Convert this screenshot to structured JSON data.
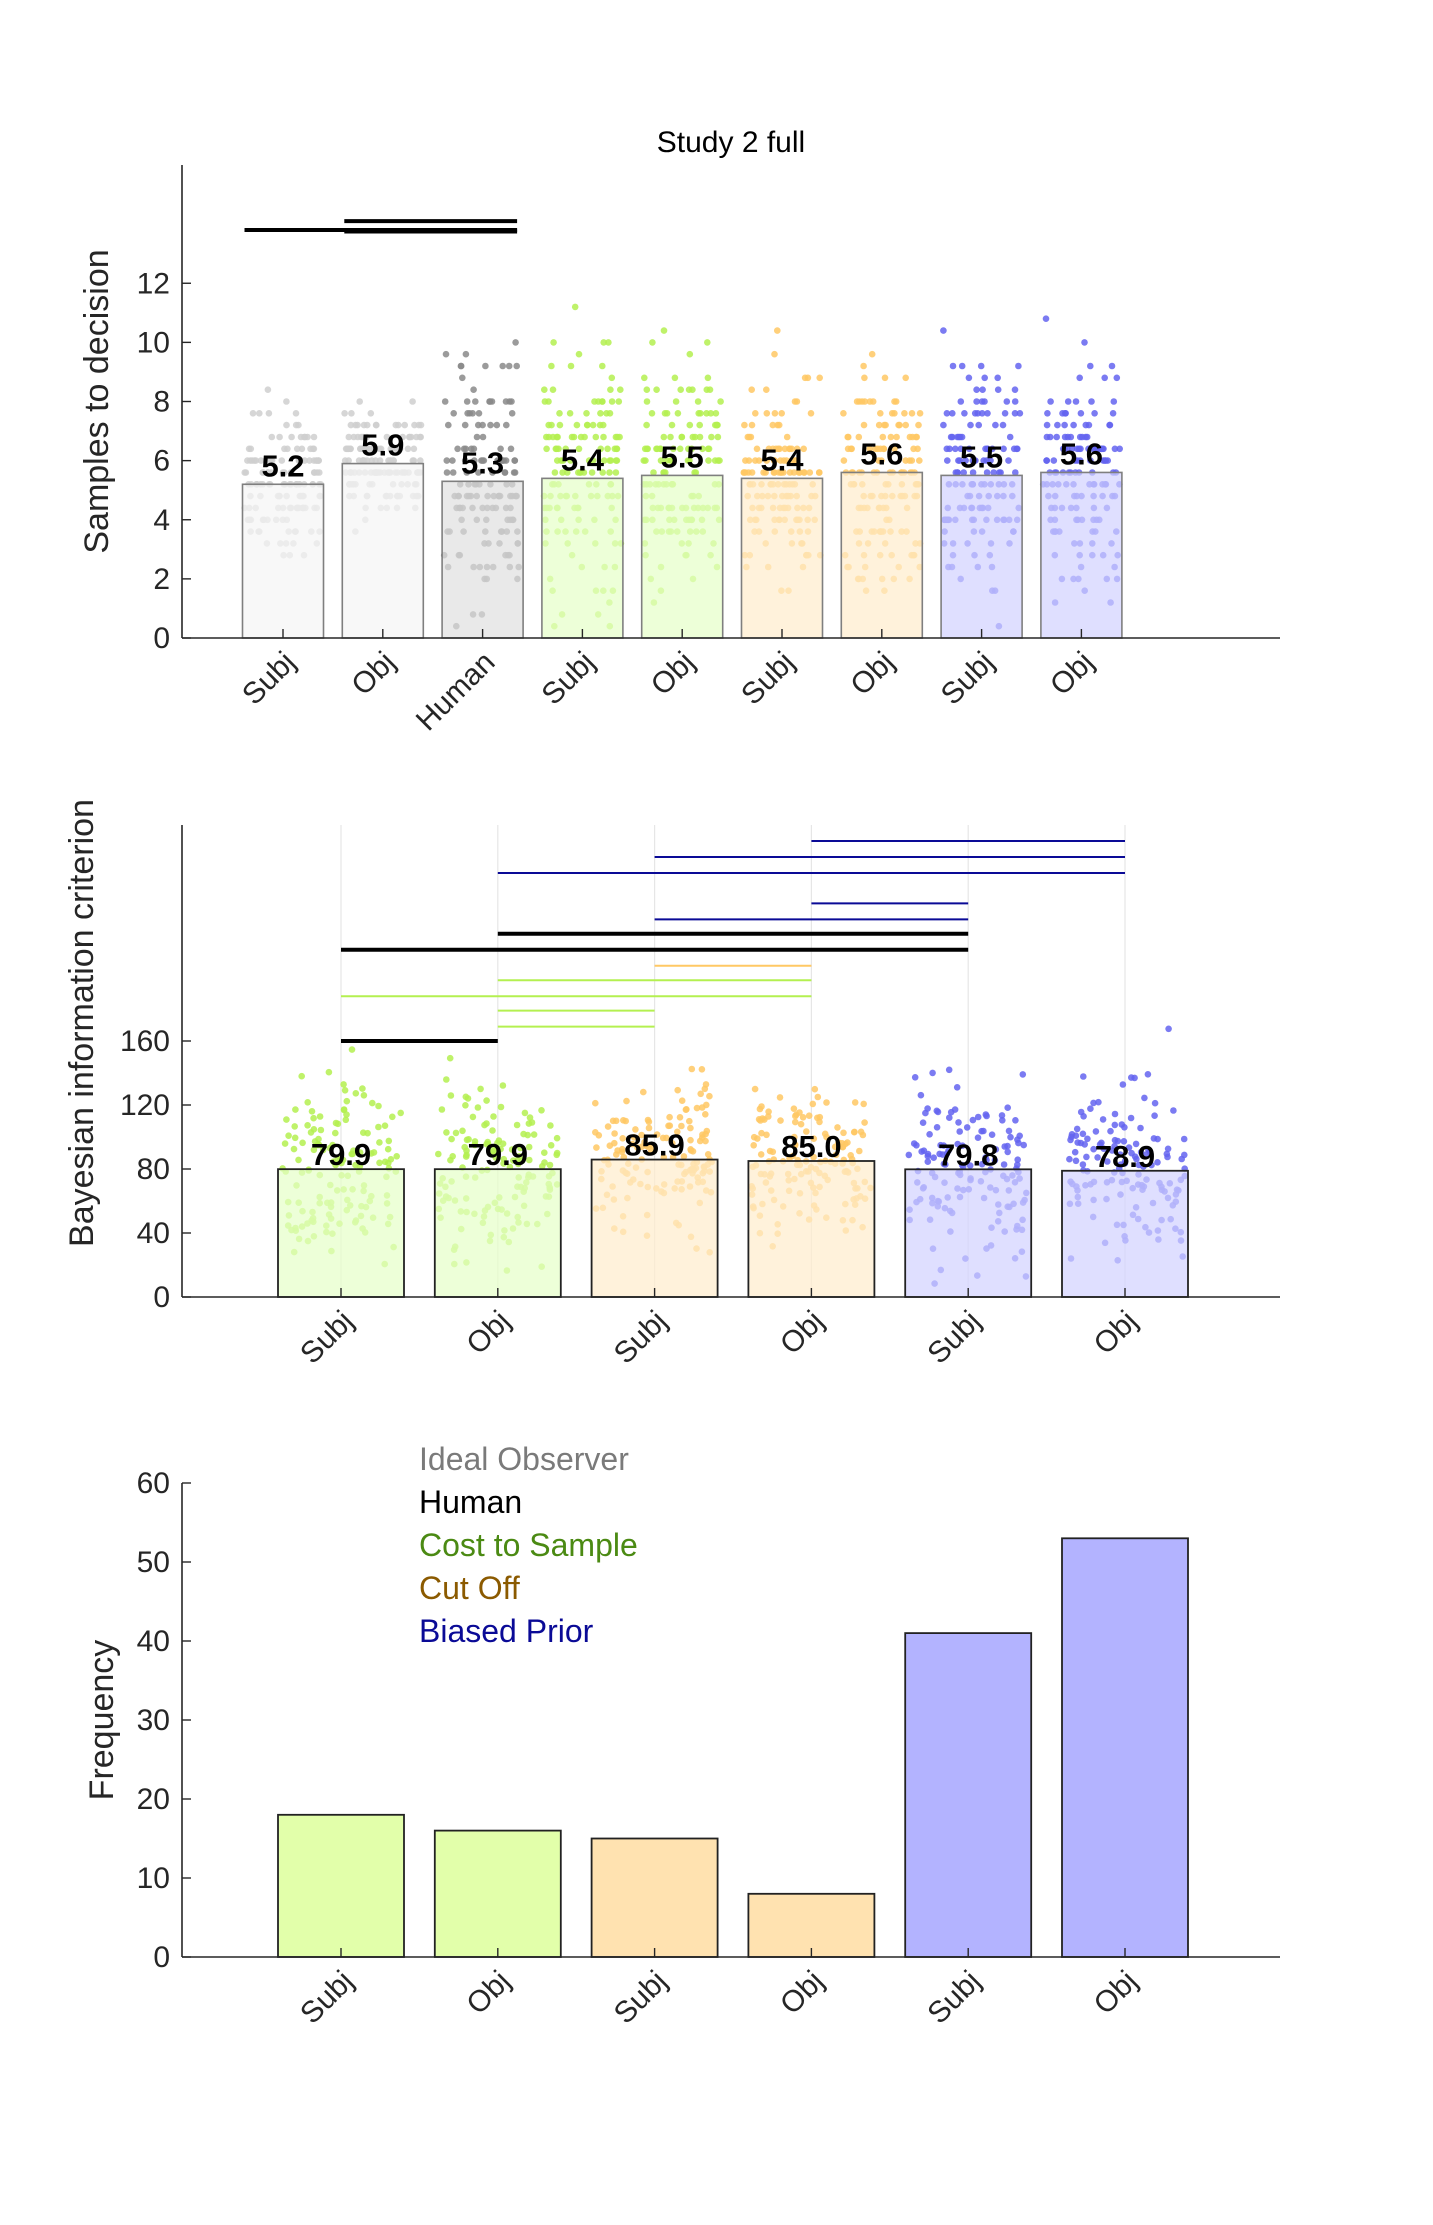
{
  "colors": {
    "ideal": "#888888",
    "human": "#000000",
    "cost": "#b4f050",
    "cutoff": "#ffc864",
    "biased": "#6464f0",
    "cost_fill": "#e6ffc8",
    "cutoff_fill": "#ffeccc",
    "biased_fill": "#d2d2ff",
    "cost_text": "#4b8a13",
    "cutoff_text": "#8b5a00",
    "biased_text": "#0a0a96",
    "ideal_text": "#7a7a7a"
  },
  "chart_data": [
    {
      "type": "bar",
      "title": "Study 2 full",
      "ylabel": "Samples to decision",
      "xlabel": "",
      "ylim": [
        0,
        16
      ],
      "yticks": [
        0,
        2,
        4,
        6,
        8,
        10,
        12
      ],
      "categories": [
        "Subj",
        "Obj",
        "Human",
        "Subj",
        "Obj",
        "Subj",
        "Obj",
        "Subj",
        "Obj"
      ],
      "groups": [
        "ideal",
        "ideal",
        "human",
        "cost",
        "cost",
        "cutoff",
        "cutoff",
        "biased",
        "biased"
      ],
      "values": [
        5.2,
        5.9,
        5.3,
        5.4,
        5.5,
        5.4,
        5.6,
        5.5,
        5.6
      ],
      "value_labels": [
        "5.2",
        "5.9",
        "5.3",
        "5.4",
        "5.5",
        "5.4",
        "5.6",
        "5.5",
        "5.6"
      ],
      "points_per_bar": 140,
      "point_spread_sd": [
        1.2,
        0.9,
        2.0,
        2.1,
        2.0,
        1.9,
        1.8,
        1.9,
        1.9
      ],
      "significance_bars": [
        {
          "from": 0,
          "to": 2,
          "color": "#000000",
          "y": 13.8
        },
        {
          "from": 1,
          "to": 2,
          "color": "#000000",
          "y": 14.1
        },
        {
          "from": 1,
          "to": 2,
          "color": "#000000",
          "y": 13.75
        }
      ],
      "grid": false
    },
    {
      "type": "bar",
      "title": "",
      "ylabel": "Bayesian information criterion",
      "xlabel": "",
      "ylim": [
        0,
        295
      ],
      "yticks": [
        0,
        40,
        80,
        120,
        160
      ],
      "categories": [
        "Subj",
        "Obj",
        "Subj",
        "Obj",
        "Subj",
        "Obj"
      ],
      "groups": [
        "cost",
        "cost",
        "cutoff",
        "cutoff",
        "biased",
        "biased"
      ],
      "values": [
        79.9,
        79.9,
        85.9,
        85.0,
        79.8,
        78.9
      ],
      "value_labels": [
        "79.9",
        "79.9",
        "85.9",
        "85.0",
        "79.8",
        "78.9"
      ],
      "points_per_bar": 140,
      "point_spread_sd": [
        26,
        27,
        24,
        23,
        26,
        26
      ],
      "significance_bars": [
        {
          "from": 0,
          "to": 1,
          "color": "#000000",
          "y": 160,
          "thick": true
        },
        {
          "from": 1,
          "to": 2,
          "color": "#b4f050",
          "y": 169
        },
        {
          "from": 1,
          "to": 2,
          "color": "#b4f050",
          "y": 179
        },
        {
          "from": 0,
          "to": 3,
          "color": "#b4f050",
          "y": 188
        },
        {
          "from": 1,
          "to": 3,
          "color": "#b4f050",
          "y": 198
        },
        {
          "from": 2,
          "to": 3,
          "color": "#ffc864",
          "y": 207
        },
        {
          "from": 0,
          "to": 4,
          "color": "#000000",
          "y": 217,
          "thick": true
        },
        {
          "from": 1,
          "to": 4,
          "color": "#000000",
          "y": 227,
          "thick": true
        },
        {
          "from": 2,
          "to": 4,
          "color": "#0a0a96",
          "y": 236
        },
        {
          "from": 3,
          "to": 4,
          "color": "#0a0a96",
          "y": 246
        },
        {
          "from": 1,
          "to": 5,
          "color": "#0a0a96",
          "y": 265
        },
        {
          "from": 2,
          "to": 5,
          "color": "#0a0a96",
          "y": 275
        },
        {
          "from": 3,
          "to": 5,
          "color": "#0a0a96",
          "y": 285
        }
      ],
      "grid": true
    },
    {
      "type": "bar",
      "title": "",
      "ylabel": "Frequency",
      "xlabel": "",
      "ylim": [
        0,
        60
      ],
      "yticks": [
        0,
        10,
        20,
        30,
        40,
        50,
        60
      ],
      "categories": [
        "Subj",
        "Obj",
        "Subj",
        "Obj",
        "Subj",
        "Obj"
      ],
      "groups": [
        "cost",
        "cost",
        "cutoff",
        "cutoff",
        "biased",
        "biased"
      ],
      "values": [
        18,
        16,
        15,
        8,
        41,
        53
      ],
      "legend": {
        "placement": "top-left",
        "entries": [
          {
            "label": "Ideal Observer",
            "color": "#7a7a7a"
          },
          {
            "label": "Human",
            "color": "#000000"
          },
          {
            "label": "Cost to Sample",
            "color": "#4b8a13"
          },
          {
            "label": "Cut Off",
            "color": "#8b5a00"
          },
          {
            "label": "Biased Prior",
            "color": "#0a0a96"
          }
        ]
      },
      "grid": false
    }
  ]
}
